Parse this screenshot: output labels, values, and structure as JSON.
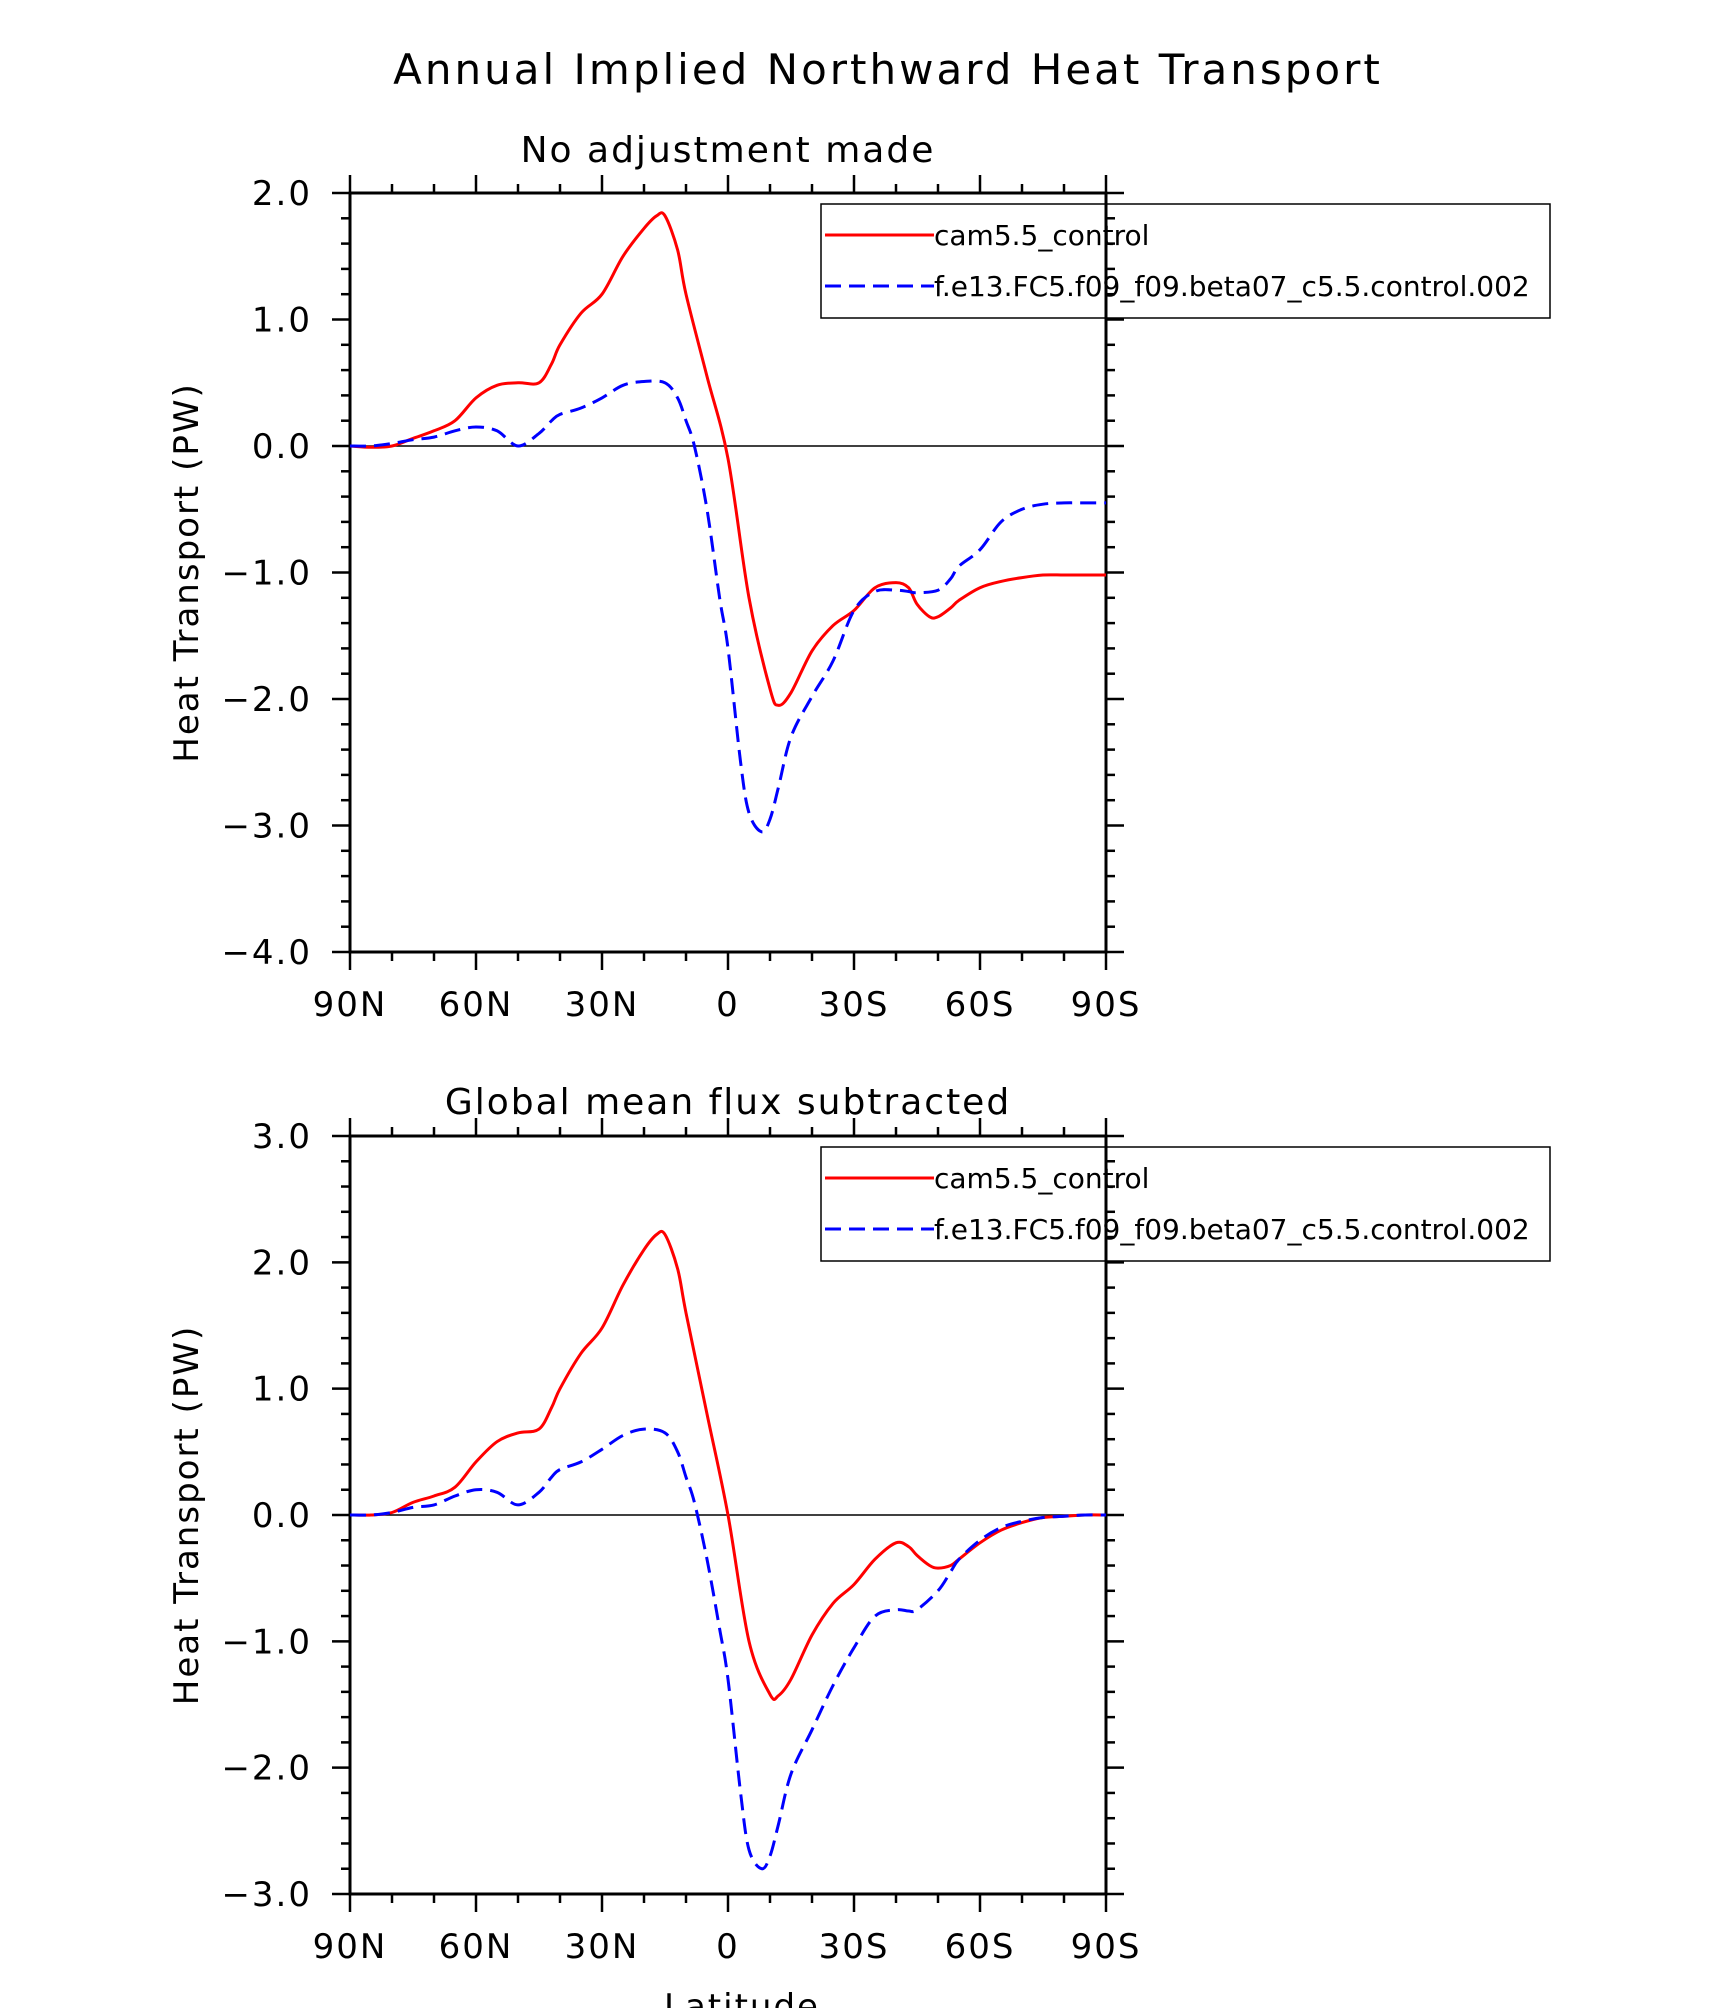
{
  "figure": {
    "title": "Annual Implied Northward Heat Transport",
    "xlabel": "Latitude"
  },
  "chart_data": [
    {
      "type": "line",
      "title": "No adjustment made",
      "xlabel": "",
      "ylabel": "Heat Transport (PW)",
      "xlim": [
        90,
        -90
      ],
      "ylim": [
        -4.0,
        2.0
      ],
      "xticks": [
        90,
        60,
        30,
        0,
        -30,
        -60,
        -90
      ],
      "xtick_labels": [
        "90N",
        "60N",
        "30N",
        "0",
        "30S",
        "60S",
        "90S"
      ],
      "yticks": [
        2.0,
        1.0,
        0.0,
        -1.0,
        -2.0,
        -3.0,
        -4.0
      ],
      "ytick_labels": [
        "2.0",
        "1.0",
        "0.0",
        "−1.0",
        "−2.0",
        "−3.0",
        "−4.0"
      ],
      "legend_position": "top-right",
      "series": [
        {
          "name": "cam5.5_control",
          "color": "#ff0000",
          "style": "solid",
          "x": [
            90,
            85,
            80,
            75,
            70,
            65,
            60,
            55,
            50,
            45,
            42,
            40,
            35,
            30,
            25,
            20,
            17,
            15,
            12,
            10,
            5,
            0,
            -5,
            -10,
            -12,
            -15,
            -20,
            -25,
            -30,
            -35,
            -40,
            -43,
            -45,
            -48,
            -50,
            -53,
            -55,
            -60,
            -65,
            -70,
            -75,
            -80,
            -85,
            -90
          ],
          "y": [
            0.0,
            -0.01,
            0.0,
            0.06,
            0.12,
            0.2,
            0.38,
            0.48,
            0.5,
            0.5,
            0.65,
            0.8,
            1.05,
            1.2,
            1.5,
            1.72,
            1.82,
            1.82,
            1.55,
            1.2,
            0.55,
            -0.1,
            -1.2,
            -1.92,
            -2.05,
            -1.95,
            -1.62,
            -1.42,
            -1.3,
            -1.12,
            -1.08,
            -1.12,
            -1.25,
            -1.35,
            -1.35,
            -1.28,
            -1.22,
            -1.12,
            -1.07,
            -1.04,
            -1.02,
            -1.02,
            -1.02,
            -1.02
          ]
        },
        {
          "name": "f.e13.FC5.f09_f09.beta07_c5.5.control.002",
          "color": "#0000ff",
          "style": "dashed",
          "x": [
            90,
            85,
            80,
            75,
            70,
            65,
            60,
            55,
            50,
            45,
            42,
            40,
            35,
            30,
            25,
            20,
            15,
            12,
            10,
            8,
            5,
            2,
            0,
            -3,
            -5,
            -8,
            -10,
            -12,
            -15,
            -20,
            -25,
            -30,
            -35,
            -40,
            -43,
            -45,
            -50,
            -53,
            -55,
            -60,
            -65,
            -70,
            -75,
            -80,
            -85,
            -90
          ],
          "y": [
            0.0,
            0.0,
            0.02,
            0.05,
            0.07,
            0.12,
            0.15,
            0.12,
            0.0,
            0.1,
            0.2,
            0.25,
            0.3,
            0.38,
            0.48,
            0.51,
            0.5,
            0.38,
            0.2,
            0.0,
            -0.5,
            -1.2,
            -1.6,
            -2.5,
            -2.9,
            -3.05,
            -2.95,
            -2.7,
            -2.3,
            -1.98,
            -1.7,
            -1.3,
            -1.15,
            -1.14,
            -1.15,
            -1.16,
            -1.14,
            -1.05,
            -0.95,
            -0.82,
            -0.6,
            -0.5,
            -0.46,
            -0.45,
            -0.45,
            -0.45
          ]
        }
      ]
    },
    {
      "type": "line",
      "title": "Global mean flux subtracted",
      "xlabel": "Latitude",
      "ylabel": "Heat Transport (PW)",
      "xlim": [
        90,
        -90
      ],
      "ylim": [
        -3.0,
        3.0
      ],
      "xticks": [
        90,
        60,
        30,
        0,
        -30,
        -60,
        -90
      ],
      "xtick_labels": [
        "90N",
        "60N",
        "30N",
        "0",
        "30S",
        "60S",
        "90S"
      ],
      "yticks": [
        3.0,
        2.0,
        1.0,
        0.0,
        -1.0,
        -2.0,
        -3.0
      ],
      "ytick_labels": [
        "3.0",
        "2.0",
        "1.0",
        "0.0",
        "−1.0",
        "−2.0",
        "−3.0"
      ],
      "legend_position": "top-right",
      "series": [
        {
          "name": "cam5.5_control",
          "color": "#ff0000",
          "style": "solid",
          "x": [
            90,
            85,
            80,
            75,
            70,
            65,
            60,
            55,
            50,
            45,
            42,
            40,
            35,
            30,
            25,
            20,
            17,
            15,
            12,
            10,
            5,
            0,
            -5,
            -10,
            -12,
            -15,
            -20,
            -25,
            -30,
            -35,
            -40,
            -43,
            -45,
            -48,
            -50,
            -53,
            -55,
            -60,
            -65,
            -70,
            -75,
            -80,
            -85,
            -90
          ],
          "y": [
            0.0,
            0.0,
            0.02,
            0.1,
            0.15,
            0.22,
            0.42,
            0.58,
            0.65,
            0.68,
            0.85,
            1.0,
            1.28,
            1.48,
            1.82,
            2.1,
            2.22,
            2.22,
            1.95,
            1.6,
            0.8,
            0.0,
            -1.0,
            -1.42,
            -1.43,
            -1.3,
            -0.95,
            -0.7,
            -0.55,
            -0.35,
            -0.22,
            -0.25,
            -0.32,
            -0.4,
            -0.42,
            -0.4,
            -0.35,
            -0.22,
            -0.12,
            -0.06,
            -0.02,
            -0.01,
            0.0,
            0.0
          ]
        },
        {
          "name": "f.e13.FC5.f09_f09.beta07_c5.5.control.002",
          "color": "#0000ff",
          "style": "dashed",
          "x": [
            90,
            85,
            80,
            75,
            70,
            65,
            60,
            55,
            50,
            45,
            42,
            40,
            35,
            30,
            25,
            20,
            15,
            12,
            10,
            8,
            5,
            2,
            0,
            -3,
            -5,
            -8,
            -10,
            -12,
            -15,
            -20,
            -25,
            -30,
            -35,
            -40,
            -43,
            -45,
            -50,
            -53,
            -55,
            -60,
            -65,
            -70,
            -75,
            -80,
            -85,
            -90
          ],
          "y": [
            0.0,
            0.0,
            0.02,
            0.06,
            0.08,
            0.15,
            0.2,
            0.18,
            0.08,
            0.18,
            0.3,
            0.36,
            0.42,
            0.52,
            0.63,
            0.68,
            0.65,
            0.5,
            0.3,
            0.1,
            -0.35,
            -0.9,
            -1.3,
            -2.2,
            -2.65,
            -2.8,
            -2.7,
            -2.45,
            -2.05,
            -1.7,
            -1.35,
            -1.05,
            -0.8,
            -0.75,
            -0.76,
            -0.75,
            -0.6,
            -0.45,
            -0.35,
            -0.2,
            -0.1,
            -0.05,
            -0.02,
            -0.01,
            0.0,
            0.0
          ]
        }
      ]
    }
  ]
}
